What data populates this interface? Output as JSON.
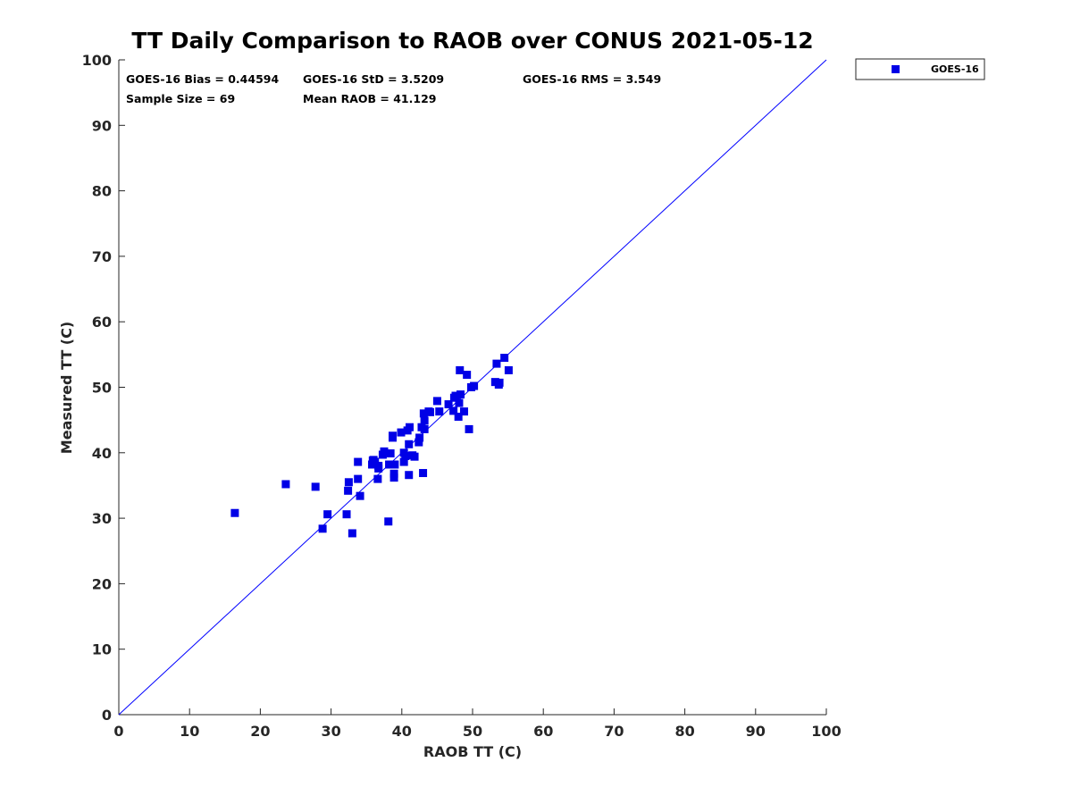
{
  "chart_data": {
    "type": "scatter",
    "title": "TT Daily Comparison to RAOB over CONUS 2021-05-12",
    "xlabel": "RAOB TT (C)",
    "ylabel": "Measured TT (C)",
    "xlim": [
      0,
      100
    ],
    "ylim": [
      0,
      100
    ],
    "xticks": [
      0,
      10,
      20,
      30,
      40,
      50,
      60,
      70,
      80,
      90,
      100
    ],
    "yticks": [
      0,
      10,
      20,
      30,
      40,
      50,
      60,
      70,
      80,
      90,
      100
    ],
    "reference_line": {
      "name": "1:1 line",
      "from": [
        0,
        0
      ],
      "to": [
        100,
        100
      ],
      "color": "#0000ff"
    },
    "legend": {
      "position": "outside-top-right",
      "entries": [
        "GOES-16"
      ]
    },
    "stats": {
      "bias": "GOES-16 Bias = 0.44594",
      "std": "GOES-16 StD = 3.5209",
      "rms": "GOES-16 RMS = 3.549",
      "sample_size": "Sample Size = 69",
      "mean_raob": "Mean RAOB = 41.129"
    },
    "series": [
      {
        "name": "GOES-16",
        "color": "#0000e6",
        "marker": "square",
        "points": [
          [
            16.4,
            30.8
          ],
          [
            23.6,
            35.2
          ],
          [
            27.8,
            34.8
          ],
          [
            28.8,
            28.4
          ],
          [
            29.5,
            30.6
          ],
          [
            32.2,
            30.6
          ],
          [
            32.4,
            34.2
          ],
          [
            32.5,
            35.5
          ],
          [
            33.0,
            27.7
          ],
          [
            33.8,
            36.0
          ],
          [
            33.8,
            38.6
          ],
          [
            34.1,
            33.4
          ],
          [
            35.8,
            38.2
          ],
          [
            35.9,
            38.8
          ],
          [
            36.2,
            38.6
          ],
          [
            36.6,
            36.0
          ],
          [
            36.7,
            38.0
          ],
          [
            36.7,
            37.6
          ],
          [
            37.3,
            39.7
          ],
          [
            37.5,
            40.2
          ],
          [
            38.1,
            29.5
          ],
          [
            38.2,
            38.2
          ],
          [
            38.4,
            39.9
          ],
          [
            38.7,
            42.3
          ],
          [
            38.7,
            42.6
          ],
          [
            38.9,
            36.2
          ],
          [
            38.9,
            36.8
          ],
          [
            39.0,
            38.2
          ],
          [
            39.9,
            43.1
          ],
          [
            40.3,
            40.0
          ],
          [
            40.3,
            38.6
          ],
          [
            40.8,
            43.4
          ],
          [
            41.0,
            36.6
          ],
          [
            41.0,
            41.3
          ],
          [
            41.1,
            43.9
          ],
          [
            41.5,
            39.6
          ],
          [
            41.8,
            39.4
          ],
          [
            42.4,
            41.6
          ],
          [
            42.5,
            42.3
          ],
          [
            42.8,
            43.9
          ],
          [
            43.0,
            36.9
          ],
          [
            43.1,
            46.0
          ],
          [
            43.2,
            43.6
          ],
          [
            43.2,
            44.9
          ],
          [
            43.8,
            46.3
          ],
          [
            45.0,
            47.9
          ],
          [
            45.3,
            46.3
          ],
          [
            46.6,
            47.4
          ],
          [
            47.3,
            46.4
          ],
          [
            47.4,
            48.4
          ],
          [
            47.6,
            48.7
          ],
          [
            48.0,
            45.5
          ],
          [
            48.1,
            47.6
          ],
          [
            48.2,
            52.6
          ],
          [
            48.3,
            48.9
          ],
          [
            48.8,
            46.3
          ],
          [
            49.2,
            51.9
          ],
          [
            49.5,
            43.6
          ],
          [
            49.8,
            50.0
          ],
          [
            50.2,
            50.2
          ],
          [
            53.2,
            50.8
          ],
          [
            53.4,
            53.6
          ],
          [
            53.7,
            50.4
          ],
          [
            53.8,
            50.7
          ],
          [
            54.5,
            54.5
          ],
          [
            55.1,
            52.6
          ],
          [
            40.5,
            39.5
          ],
          [
            44.0,
            46.2
          ],
          [
            36.0,
            38.9
          ]
        ]
      }
    ]
  }
}
